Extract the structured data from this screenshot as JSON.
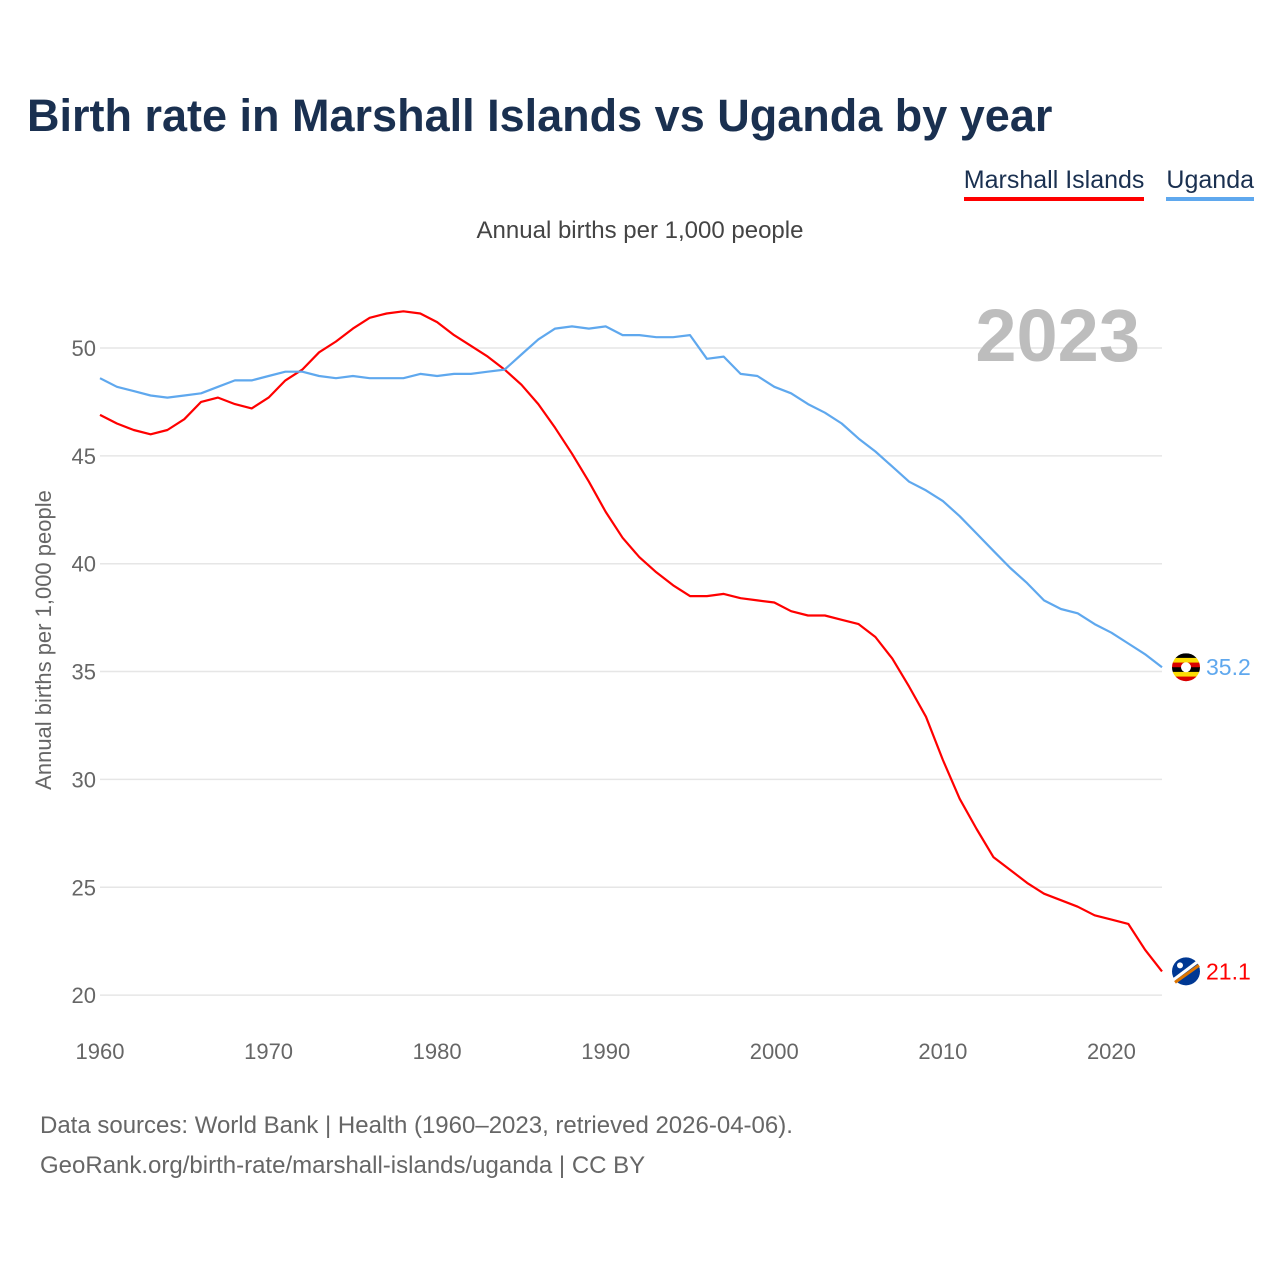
{
  "title": "Birth rate in Marshall Islands vs Uganda by year",
  "legend": [
    "Marshall Islands",
    "Uganda"
  ],
  "subtitle": "Annual births per 1,000 people",
  "year_label": "2023",
  "footer": {
    "line1": "Data sources: World Bank | Health (1960–2023, retrieved 2026-04-06).",
    "line2": "GeoRank.org/birth-rate/marshall-islands/uganda | CC BY"
  },
  "chart_data": {
    "type": "line",
    "title": "Birth rate in Marshall Islands vs Uganda by year",
    "xlabel": "",
    "ylabel": "Annual births per 1,000 people",
    "xlim": [
      1960,
      2023
    ],
    "ylim": [
      20,
      52
    ],
    "x_ticks": [
      1960,
      1970,
      1980,
      1990,
      2000,
      2010,
      2020
    ],
    "y_ticks": [
      20,
      25,
      30,
      35,
      40,
      45,
      50
    ],
    "grid": true,
    "legend_position": "top-right",
    "x_start": 1960,
    "series": [
      {
        "name": "Marshall Islands",
        "color": "#ff0000",
        "end_label": "21.1",
        "flag": "marshall-islands-flag",
        "values": [
          46.9,
          46.5,
          46.2,
          46.0,
          46.2,
          46.7,
          47.5,
          47.7,
          47.4,
          47.2,
          47.7,
          48.5,
          49.0,
          49.8,
          50.3,
          50.9,
          51.4,
          51.6,
          51.7,
          51.6,
          51.2,
          50.6,
          50.1,
          49.6,
          49.0,
          48.3,
          47.4,
          46.3,
          45.1,
          43.8,
          42.4,
          41.2,
          40.3,
          39.6,
          39.0,
          38.5,
          38.5,
          38.6,
          38.4,
          38.3,
          38.2,
          37.8,
          37.6,
          37.6,
          37.4,
          37.2,
          36.6,
          35.6,
          34.3,
          32.9,
          30.9,
          29.1,
          27.7,
          26.4,
          25.8,
          25.2,
          24.7,
          24.4,
          24.1,
          23.7,
          23.5,
          23.3,
          22.1,
          21.1
        ]
      },
      {
        "name": "Uganda",
        "color": "#5fa8ee",
        "end_label": "35.2",
        "flag": "uganda-flag",
        "values": [
          48.6,
          48.2,
          48.0,
          47.8,
          47.7,
          47.8,
          47.9,
          48.2,
          48.5,
          48.5,
          48.7,
          48.9,
          48.9,
          48.7,
          48.6,
          48.7,
          48.6,
          48.6,
          48.6,
          48.8,
          48.7,
          48.8,
          48.8,
          48.9,
          49.0,
          49.7,
          50.4,
          50.9,
          51.0,
          50.9,
          51.0,
          50.6,
          50.6,
          50.5,
          50.5,
          50.6,
          49.5,
          49.6,
          48.8,
          48.7,
          48.2,
          47.9,
          47.4,
          47.0,
          46.5,
          45.8,
          45.2,
          44.5,
          43.8,
          43.4,
          42.9,
          42.2,
          41.4,
          40.6,
          39.8,
          39.1,
          38.3,
          37.9,
          37.7,
          37.2,
          36.8,
          36.3,
          35.8,
          35.2
        ]
      }
    ]
  }
}
